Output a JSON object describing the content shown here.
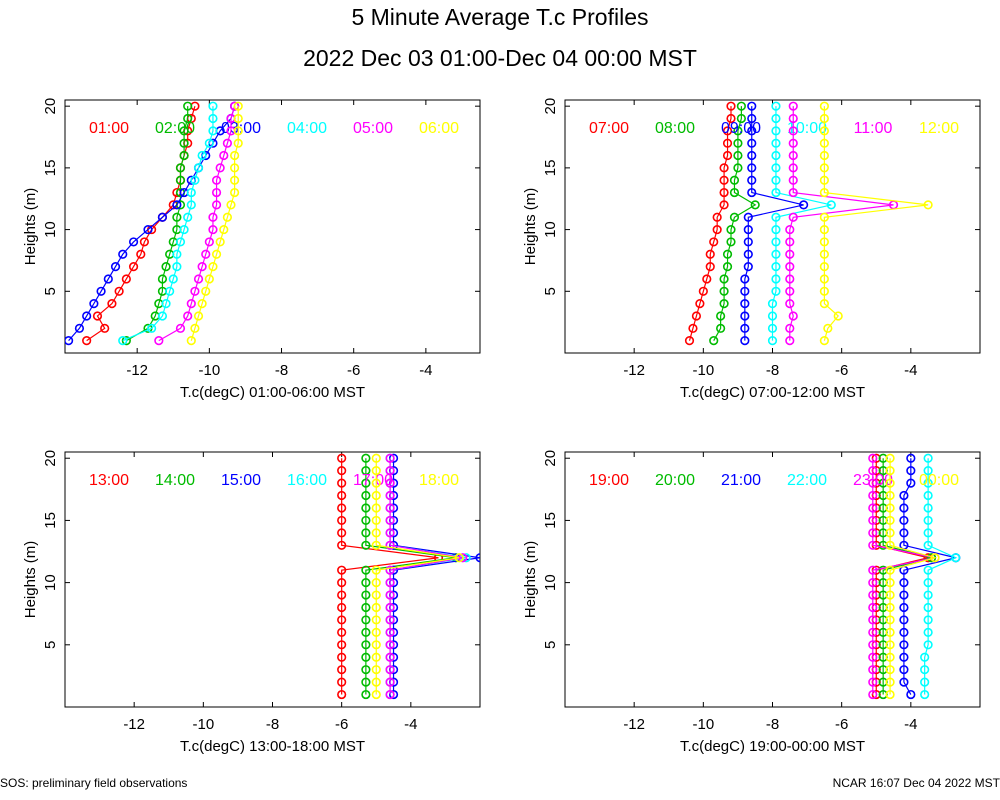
{
  "header": {
    "title": "5 Minute Average T.c Profiles",
    "subtitle": "2022 Dec 03 01:00-Dec 04 00:00 MST"
  },
  "footer": {
    "left": "SOS: preliminary field observations",
    "right": "NCAR 16:07 Dec 04 2022 MST"
  },
  "colors": [
    "#ff0000",
    "#00bb00",
    "#0000ff",
    "#00ffff",
    "#ff00ff",
    "#ffff00"
  ],
  "chart_data": [
    {
      "type": "scatter",
      "xlabel": "T.c(degC) 01:00-06:00 MST",
      "ylabel": "Heights (m)",
      "xlim": [
        -14,
        -2.5
      ],
      "ylim": [
        0,
        20.5
      ],
      "xticks": [
        -12,
        -10,
        -8,
        -6,
        -4
      ],
      "yticks": [
        5,
        10,
        15,
        20
      ],
      "heights": [
        1,
        2,
        3,
        4,
        5,
        6,
        7,
        8,
        9,
        10,
        11,
        12,
        13,
        14,
        15,
        16,
        17,
        18,
        19,
        20
      ],
      "series": [
        {
          "name": "01:00",
          "values": [
            -13.4,
            -12.9,
            -13.1,
            -12.7,
            -12.5,
            -12.3,
            -12.1,
            -11.9,
            -11.8,
            -11.6,
            -11.3,
            -11.0,
            -10.9,
            -10.8,
            -10.8,
            -10.7,
            -10.6,
            -10.6,
            -10.5,
            -10.4
          ]
        },
        {
          "name": "02:00",
          "values": [
            -12.3,
            -11.7,
            -11.5,
            -11.4,
            -11.3,
            -11.3,
            -11.2,
            -11.1,
            -11.0,
            -10.9,
            -10.9,
            -10.8,
            -10.8,
            -10.8,
            -10.8,
            -10.7,
            -10.7,
            -10.7,
            -10.6,
            -10.6
          ]
        },
        {
          "name": "03:00",
          "values": [
            -13.9,
            -13.6,
            -13.4,
            -13.2,
            -13.0,
            -12.8,
            -12.6,
            -12.4,
            -12.1,
            -11.7,
            -11.3,
            -10.9,
            -10.7,
            -10.5,
            -10.3,
            -10.1,
            -9.9,
            -9.7,
            -9.4,
            -9.3
          ]
        },
        {
          "name": "04:00",
          "values": [
            -12.4,
            -11.6,
            -11.3,
            -11.2,
            -11.1,
            -11.0,
            -10.9,
            -10.9,
            -10.8,
            -10.7,
            -10.6,
            -10.5,
            -10.5,
            -10.4,
            -10.3,
            -10.2,
            -10.0,
            -9.9,
            -9.9,
            -9.9
          ]
        },
        {
          "name": "05:00",
          "values": [
            -11.4,
            -10.8,
            -10.6,
            -10.5,
            -10.4,
            -10.3,
            -10.2,
            -10.1,
            -10.0,
            -9.9,
            -9.9,
            -9.8,
            -9.8,
            -9.8,
            -9.7,
            -9.6,
            -9.5,
            -9.4,
            -9.4,
            -9.3
          ]
        },
        {
          "name": "06:00",
          "values": [
            -10.5,
            -10.4,
            -10.3,
            -10.2,
            -10.1,
            -10.0,
            -9.9,
            -9.8,
            -9.7,
            -9.6,
            -9.5,
            -9.4,
            -9.3,
            -9.3,
            -9.3,
            -9.3,
            -9.2,
            -9.2,
            -9.2,
            -9.2
          ]
        }
      ]
    },
    {
      "type": "scatter",
      "xlabel": "T.c(degC) 07:00-12:00 MST",
      "ylabel": "Heights (m)",
      "xlim": [
        -14,
        -2
      ],
      "ylim": [
        0,
        20.5
      ],
      "xticks": [
        -12,
        -10,
        -8,
        -6,
        -4
      ],
      "yticks": [
        5,
        10,
        15,
        20
      ],
      "heights": [
        1,
        2,
        3,
        4,
        5,
        6,
        7,
        8,
        9,
        10,
        11,
        12,
        13,
        14,
        15,
        16,
        17,
        18,
        19,
        20
      ],
      "series": [
        {
          "name": "07:00",
          "values": [
            -10.4,
            -10.3,
            -10.2,
            -10.1,
            -10.0,
            -9.9,
            -9.8,
            -9.8,
            -9.7,
            -9.6,
            -9.6,
            -9.4,
            -9.4,
            -9.4,
            -9.4,
            -9.3,
            -9.3,
            -9.3,
            -9.2,
            -9.2
          ]
        },
        {
          "name": "08:00",
          "values": [
            -9.7,
            -9.5,
            -9.5,
            -9.4,
            -9.4,
            -9.4,
            -9.3,
            -9.3,
            -9.2,
            -9.2,
            -9.1,
            -8.5,
            -9.1,
            -9.1,
            -9.0,
            -9.0,
            -9.0,
            -9.0,
            -8.9,
            -8.9
          ]
        },
        {
          "name": "09:00",
          "values": [
            -8.8,
            -8.8,
            -8.8,
            -8.8,
            -8.8,
            -8.8,
            -8.7,
            -8.7,
            -8.7,
            -8.7,
            -8.7,
            -7.1,
            -8.6,
            -8.6,
            -8.6,
            -8.6,
            -8.6,
            -8.6,
            -8.6,
            -8.6
          ]
        },
        {
          "name": "10:00",
          "values": [
            -8.0,
            -8.0,
            -8.0,
            -8.0,
            -7.9,
            -7.9,
            -7.9,
            -7.9,
            -7.9,
            -7.9,
            -7.9,
            -6.3,
            -7.9,
            -7.9,
            -7.9,
            -7.9,
            -7.9,
            -7.9,
            -7.9,
            -7.9
          ]
        },
        {
          "name": "11:00",
          "values": [
            -7.5,
            -7.5,
            -7.4,
            -7.5,
            -7.5,
            -7.5,
            -7.5,
            -7.5,
            -7.5,
            -7.5,
            -7.4,
            -4.5,
            -7.4,
            -7.4,
            -7.4,
            -7.4,
            -7.4,
            -7.4,
            -7.4,
            -7.4
          ]
        },
        {
          "name": "12:00",
          "values": [
            -6.5,
            -6.4,
            -6.1,
            -6.5,
            -6.5,
            -6.5,
            -6.5,
            -6.5,
            -6.5,
            -6.5,
            -6.5,
            -3.5,
            -6.5,
            -6.5,
            -6.5,
            -6.5,
            -6.5,
            -6.5,
            -6.5,
            -6.5
          ]
        }
      ]
    },
    {
      "type": "scatter",
      "xlabel": "T.c(degC) 13:00-18:00 MST",
      "ylabel": "Heights (m)",
      "xlim": [
        -14,
        -2
      ],
      "ylim": [
        0,
        20.5
      ],
      "xticks": [
        -12,
        -10,
        -8,
        -6,
        -4
      ],
      "yticks": [
        5,
        10,
        15,
        20
      ],
      "heights": [
        1,
        2,
        3,
        4,
        5,
        6,
        7,
        8,
        9,
        10,
        11,
        12,
        13,
        14,
        15,
        16,
        17,
        18,
        19,
        20
      ],
      "series": [
        {
          "name": "13:00",
          "values": [
            -6.0,
            -6.0,
            -6.0,
            -6.0,
            -6.0,
            -6.0,
            -6.0,
            -6.0,
            -6.0,
            -6.0,
            -6.0,
            -3.2,
            -6.0,
            -6.0,
            -6.0,
            -6.0,
            -6.0,
            -6.0,
            -6.0,
            -6.0
          ]
        },
        {
          "name": "14:00",
          "values": [
            -5.3,
            -5.3,
            -5.3,
            -5.3,
            -5.3,
            -5.3,
            -5.3,
            -5.3,
            -5.3,
            -5.3,
            -5.3,
            -2.7,
            -5.3,
            -5.3,
            -5.3,
            -5.3,
            -5.3,
            -5.3,
            -5.3,
            -5.3
          ]
        },
        {
          "name": "15:00",
          "values": [
            -4.5,
            -4.5,
            -4.5,
            -4.5,
            -4.5,
            -4.5,
            -4.5,
            -4.5,
            -4.5,
            -4.5,
            -4.5,
            -2.0,
            -4.5,
            -4.5,
            -4.5,
            -4.5,
            -4.5,
            -4.5,
            -4.5,
            -4.5
          ]
        },
        {
          "name": "16:00",
          "values": [
            -4.6,
            -4.6,
            -4.6,
            -4.6,
            -4.6,
            -4.6,
            -4.6,
            -4.6,
            -4.6,
            -4.6,
            -4.6,
            -2.4,
            -4.6,
            -4.6,
            -4.6,
            -4.6,
            -4.6,
            -4.6,
            -4.6,
            -4.6
          ]
        },
        {
          "name": "17:00",
          "values": [
            -4.6,
            -4.6,
            -4.6,
            -4.6,
            -4.6,
            -4.6,
            -4.6,
            -4.6,
            -4.6,
            -4.6,
            -4.6,
            -2.5,
            -4.6,
            -4.6,
            -4.6,
            -4.6,
            -4.6,
            -4.6,
            -4.6,
            -4.6
          ]
        },
        {
          "name": "18:00",
          "values": [
            -5.0,
            -5.0,
            -5.0,
            -5.0,
            -5.0,
            -5.0,
            -5.0,
            -5.0,
            -5.0,
            -5.0,
            -5.0,
            -2.6,
            -5.0,
            -5.0,
            -5.0,
            -5.0,
            -5.0,
            -5.0,
            -5.0,
            -5.0
          ]
        }
      ]
    },
    {
      "type": "scatter",
      "xlabel": "T.c(degC) 19:00-00:00 MST",
      "ylabel": "Heights (m)",
      "xlim": [
        -14,
        -2
      ],
      "ylim": [
        0,
        20.5
      ],
      "xticks": [
        -12,
        -10,
        -8,
        -6,
        -4
      ],
      "yticks": [
        5,
        10,
        15,
        20
      ],
      "heights": [
        1,
        2,
        3,
        4,
        5,
        6,
        7,
        8,
        9,
        10,
        11,
        12,
        13,
        14,
        15,
        16,
        17,
        18,
        19,
        20
      ],
      "series": [
        {
          "name": "19:00",
          "values": [
            -5.0,
            -5.0,
            -5.0,
            -5.0,
            -5.0,
            -5.0,
            -5.0,
            -5.0,
            -5.0,
            -5.0,
            -5.0,
            -3.5,
            -5.0,
            -5.0,
            -5.0,
            -5.0,
            -5.0,
            -5.0,
            -5.0,
            -5.0
          ]
        },
        {
          "name": "20:00",
          "values": [
            -4.8,
            -4.8,
            -4.8,
            -4.8,
            -4.8,
            -4.8,
            -4.8,
            -4.8,
            -4.8,
            -4.8,
            -4.8,
            -3.4,
            -4.8,
            -4.8,
            -4.8,
            -4.8,
            -4.8,
            -4.8,
            -4.8,
            -4.8
          ]
        },
        {
          "name": "21:00",
          "values": [
            -4.0,
            -4.2,
            -4.2,
            -4.2,
            -4.2,
            -4.2,
            -4.2,
            -4.2,
            -4.2,
            -4.2,
            -4.2,
            -2.7,
            -4.2,
            -4.2,
            -4.2,
            -4.2,
            -4.2,
            -4.0,
            -4.0,
            -4.0
          ]
        },
        {
          "name": "22:00",
          "values": [
            -3.6,
            -3.6,
            -3.6,
            -3.6,
            -3.5,
            -3.5,
            -3.5,
            -3.5,
            -3.5,
            -3.5,
            -3.5,
            -2.7,
            -3.5,
            -3.5,
            -3.5,
            -3.5,
            -3.5,
            -3.5,
            -3.5,
            -3.5
          ]
        },
        {
          "name": "23:00",
          "values": [
            -5.1,
            -5.1,
            -5.1,
            -5.1,
            -5.1,
            -5.1,
            -5.1,
            -5.1,
            -5.1,
            -5.1,
            -5.1,
            -3.3,
            -5.1,
            -5.1,
            -5.1,
            -5.1,
            -5.1,
            -5.1,
            -5.1,
            -5.1
          ]
        },
        {
          "name": "00:00",
          "values": [
            -4.6,
            -4.6,
            -4.6,
            -4.6,
            -4.6,
            -4.6,
            -4.6,
            -4.6,
            -4.6,
            -4.6,
            -4.6,
            -3.3,
            -4.6,
            -4.6,
            -4.6,
            -4.6,
            -4.6,
            -4.6,
            -4.6,
            -4.6
          ]
        }
      ]
    }
  ]
}
